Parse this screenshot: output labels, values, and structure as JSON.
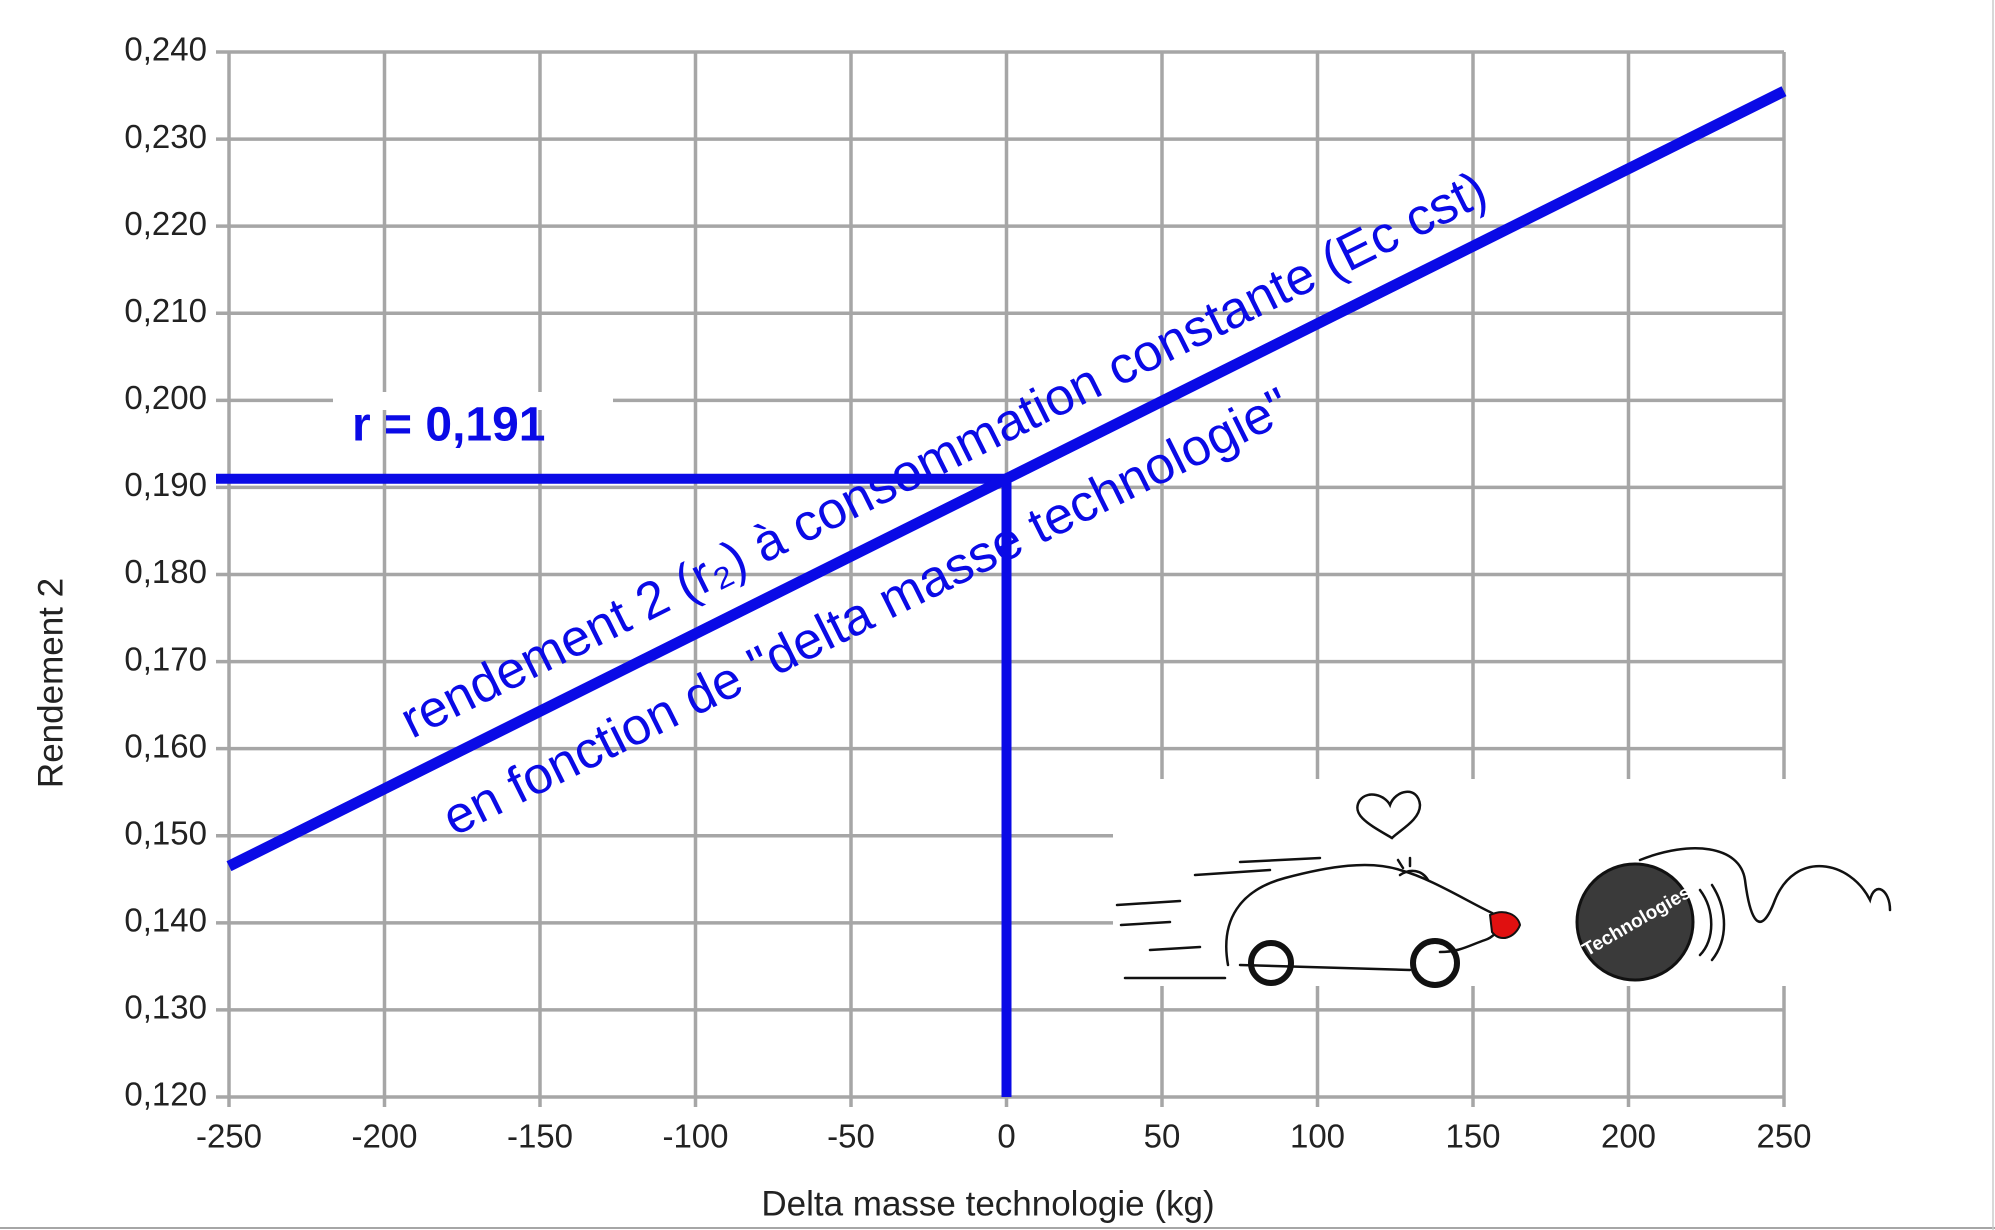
{
  "chart_data": {
    "type": "line",
    "title": "rendement 2 (r₂) à consommation constante (Ec cst)",
    "subtitle": "en fonction de \"delta masse technologie\"",
    "x_label": "Delta masse technologie (kg)",
    "y_label": "Rendement 2",
    "x": [
      -250,
      250
    ],
    "series": [
      {
        "name": "Rendement 2",
        "color": "#0a0ae6",
        "values": [
          0.1465,
          0.2355
        ]
      }
    ],
    "reference": {
      "x": 0,
      "y": 0.191,
      "label": "r = 0,191"
    },
    "picture_text": "Technologies",
    "xlim": [
      -250,
      250
    ],
    "xticks": [
      -250,
      -200,
      -150,
      -100,
      -50,
      0,
      50,
      100,
      150,
      200,
      250
    ],
    "ylim": [
      0.12,
      0.24
    ],
    "yticks": [
      {
        "value": 0.12,
        "label": "0,120"
      },
      {
        "value": 0.13,
        "label": "0,130"
      },
      {
        "value": 0.14,
        "label": "0,140"
      },
      {
        "value": 0.15,
        "label": "0,150"
      },
      {
        "value": 0.16,
        "label": "0,160"
      },
      {
        "value": 0.17,
        "label": "0,170"
      },
      {
        "value": 0.18,
        "label": "0,180"
      },
      {
        "value": 0.19,
        "label": "0,190"
      },
      {
        "value": 0.2,
        "label": "0,200"
      },
      {
        "value": 0.21,
        "label": "0,210"
      },
      {
        "value": 0.22,
        "label": "0,220"
      },
      {
        "value": 0.23,
        "label": "0,230"
      },
      {
        "value": 0.24,
        "label": "0,240"
      }
    ],
    "grid": true
  }
}
